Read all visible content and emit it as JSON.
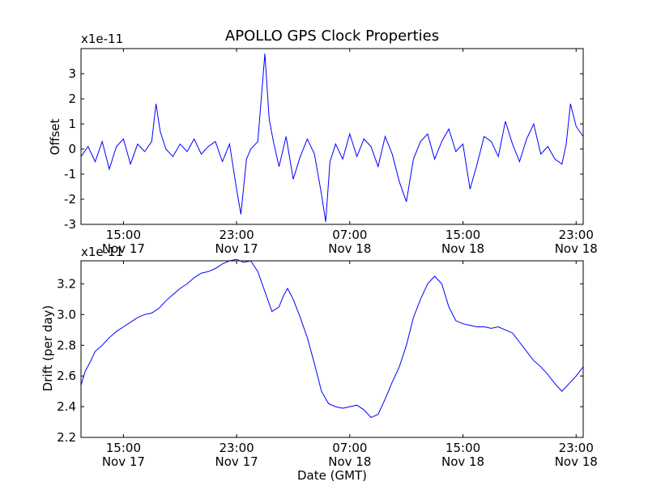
{
  "chart_data": [
    {
      "type": "line",
      "title": "APOLLO GPS Clock Properties",
      "ylabel": "Offset",
      "xlabel": "",
      "y_offset_label": "x1e-11",
      "ylim": [
        -3,
        4
      ],
      "xlim_hours": [
        12,
        47.5
      ],
      "yticks": [
        -3,
        -2,
        -1,
        0,
        1,
        2,
        3
      ],
      "xticks": [
        {
          "hour": 15,
          "label": [
            "15:00",
            "Nov 17"
          ]
        },
        {
          "hour": 23,
          "label": [
            "23:00",
            "Nov 17"
          ]
        },
        {
          "hour": 31,
          "label": [
            "07:00",
            "Nov 18"
          ]
        },
        {
          "hour": 39,
          "label": [
            "15:00",
            "Nov 18"
          ]
        },
        {
          "hour": 47,
          "label": [
            "23:00",
            "Nov 18"
          ]
        }
      ],
      "color": "#0000ff",
      "grid": false,
      "series": [
        {
          "x": [
            12.0,
            12.5,
            13.0,
            13.5,
            14.0,
            14.5,
            15.0,
            15.5,
            16.0,
            16.5,
            17.0,
            17.3,
            17.6,
            18.0,
            18.5,
            19.0,
            19.5,
            20.0,
            20.5,
            21.0,
            21.5,
            22.0,
            22.5,
            23.0,
            23.3,
            23.7,
            24.0,
            24.5,
            25.0,
            25.3,
            25.6,
            26.0,
            26.5,
            27.0,
            27.5,
            28.0,
            28.5,
            29.0,
            29.3,
            29.6,
            30.0,
            30.5,
            31.0,
            31.5,
            32.0,
            32.5,
            33.0,
            33.5,
            34.0,
            34.5,
            35.0,
            35.5,
            36.0,
            36.5,
            37.0,
            37.5,
            38.0,
            38.5,
            39.0,
            39.5,
            40.0,
            40.5,
            41.0,
            41.5,
            42.0,
            42.5,
            43.0,
            43.5,
            44.0,
            44.5,
            45.0,
            45.5,
            46.0,
            46.3,
            46.6,
            47.0,
            47.5
          ],
          "values": [
            -0.3,
            0.1,
            -0.5,
            0.3,
            -0.8,
            0.1,
            0.4,
            -0.6,
            0.2,
            -0.1,
            0.3,
            1.8,
            0.7,
            0.0,
            -0.3,
            0.2,
            -0.1,
            0.4,
            -0.2,
            0.1,
            0.3,
            -0.5,
            0.2,
            -1.6,
            -2.6,
            -0.4,
            0.0,
            0.3,
            3.8,
            1.2,
            0.3,
            -0.7,
            0.5,
            -1.2,
            -0.3,
            0.4,
            -0.2,
            -1.8,
            -2.9,
            -0.5,
            0.2,
            -0.4,
            0.6,
            -0.3,
            0.4,
            0.1,
            -0.7,
            0.5,
            -0.2,
            -1.3,
            -2.1,
            -0.4,
            0.3,
            0.6,
            -0.4,
            0.3,
            0.8,
            -0.1,
            0.2,
            -1.6,
            -0.6,
            0.5,
            0.3,
            -0.3,
            1.1,
            0.2,
            -0.5,
            0.4,
            1.0,
            -0.2,
            0.1,
            -0.4,
            -0.6,
            0.2,
            1.8,
            0.9,
            0.5
          ]
        }
      ]
    },
    {
      "type": "line",
      "title": "",
      "ylabel": "Drift (per day)",
      "xlabel": "Date (GMT)",
      "y_offset_label": "x1e-11",
      "ylim": [
        2.2,
        3.35
      ],
      "xlim_hours": [
        12,
        47.5
      ],
      "yticks": [
        2.2,
        2.4,
        2.6,
        2.8,
        3.0,
        3.2
      ],
      "ytick_labels": [
        "2.2",
        "2.4",
        "2.6",
        "2.8",
        "3.0",
        "3.2"
      ],
      "xticks": [
        {
          "hour": 15,
          "label": [
            "15:00",
            "Nov 17"
          ]
        },
        {
          "hour": 23,
          "label": [
            "23:00",
            "Nov 17"
          ]
        },
        {
          "hour": 31,
          "label": [
            "07:00",
            "Nov 18"
          ]
        },
        {
          "hour": 39,
          "label": [
            "15:00",
            "Nov 18"
          ]
        },
        {
          "hour": 47,
          "label": [
            "23:00",
            "Nov 18"
          ]
        }
      ],
      "color": "#0000ff",
      "grid": false,
      "series": [
        {
          "x": [
            12.0,
            12.3,
            12.7,
            13.0,
            13.5,
            14.0,
            14.5,
            15.0,
            15.5,
            16.0,
            16.5,
            17.0,
            17.5,
            18.0,
            18.5,
            19.0,
            19.5,
            20.0,
            20.5,
            21.0,
            21.5,
            22.0,
            22.5,
            23.0,
            23.5,
            24.0,
            24.5,
            25.0,
            25.5,
            26.0,
            26.3,
            26.6,
            27.0,
            27.5,
            28.0,
            28.5,
            29.0,
            29.5,
            30.0,
            30.5,
            31.0,
            31.5,
            32.0,
            32.5,
            33.0,
            33.5,
            34.0,
            34.5,
            35.0,
            35.5,
            36.0,
            36.5,
            37.0,
            37.5,
            38.0,
            38.5,
            39.0,
            39.5,
            40.0,
            40.5,
            41.0,
            41.5,
            42.0,
            42.5,
            43.0,
            43.5,
            44.0,
            44.5,
            45.0,
            45.5,
            46.0,
            46.5,
            47.0,
            47.5
          ],
          "values": [
            2.54,
            2.63,
            2.7,
            2.76,
            2.8,
            2.85,
            2.89,
            2.92,
            2.95,
            2.98,
            3.0,
            3.01,
            3.04,
            3.09,
            3.13,
            3.17,
            3.2,
            3.24,
            3.27,
            3.28,
            3.3,
            3.33,
            3.35,
            3.36,
            3.34,
            3.35,
            3.28,
            3.15,
            3.02,
            3.05,
            3.12,
            3.17,
            3.1,
            2.98,
            2.85,
            2.68,
            2.5,
            2.42,
            2.4,
            2.39,
            2.4,
            2.41,
            2.38,
            2.33,
            2.35,
            2.45,
            2.56,
            2.66,
            2.8,
            2.98,
            3.1,
            3.2,
            3.25,
            3.2,
            3.05,
            2.96,
            2.94,
            2.93,
            2.92,
            2.92,
            2.91,
            2.92,
            2.9,
            2.88,
            2.82,
            2.76,
            2.7,
            2.66,
            2.61,
            2.55,
            2.5,
            2.55,
            2.6,
            2.66
          ]
        }
      ]
    }
  ]
}
